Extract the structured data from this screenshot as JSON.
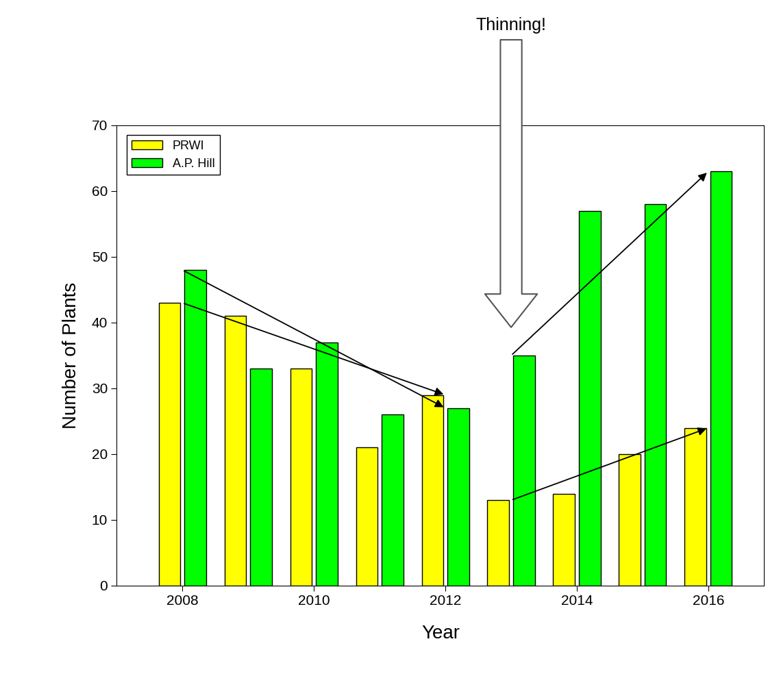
{
  "chart_data": {
    "type": "bar",
    "x": [
      2008,
      2009,
      2010,
      2011,
      2012,
      2013,
      2014,
      2015,
      2016
    ],
    "series": [
      {
        "name": "PRWI",
        "color": "#ffff00",
        "values": [
          43,
          41,
          33,
          21,
          29,
          13,
          14,
          20,
          24
        ]
      },
      {
        "name": "A.P. Hill",
        "color": "#00ff00",
        "values": [
          48,
          33,
          37,
          26,
          27,
          35,
          57,
          58,
          63
        ]
      }
    ],
    "x_label": "Year",
    "y_label": "Number of Plants",
    "xlim": [
      2007,
      2016.85
    ],
    "xticks": [
      2008,
      2010,
      2012,
      2014,
      2016
    ],
    "ylim": [
      0,
      70
    ],
    "yticks": [
      0,
      10,
      20,
      30,
      40,
      50,
      60,
      70
    ],
    "legend": "upper left",
    "annotations": [
      {
        "text": "Thinning!",
        "x": 2013
      }
    ]
  }
}
